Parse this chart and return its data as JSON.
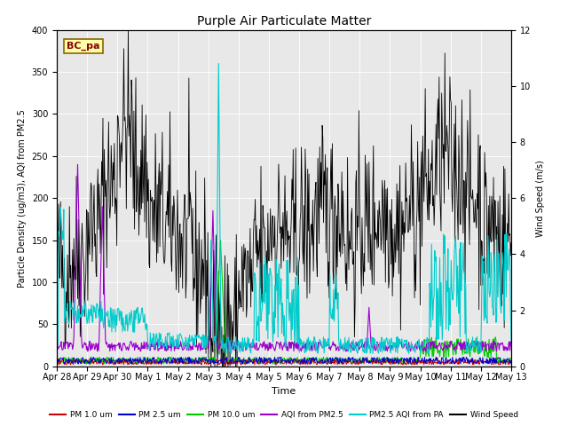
{
  "title": "Purple Air Particulate Matter",
  "xlabel": "Time",
  "ylabel_left": "Particle Density (ug/m3), AQI from PM2.5",
  "ylabel_right": "Wind Speed (m/s)",
  "ylim_left": [
    0,
    400
  ],
  "ylim_right": [
    0,
    12
  ],
  "yticks_left": [
    0,
    50,
    100,
    150,
    200,
    250,
    300,
    350,
    400
  ],
  "yticks_right": [
    0,
    2,
    4,
    6,
    8,
    10,
    12
  ],
  "xtick_labels": [
    "Apr 28",
    "Apr 29",
    "Apr 30",
    "May 1",
    "May 2",
    "May 3",
    "May 4",
    "May 5",
    "May 6",
    "May 7",
    "May 8",
    "May 9",
    "May 10",
    "May 11",
    "May 12",
    "May 13"
  ],
  "legend_labels": [
    "PM 1.0 um",
    "PM 2.5 um",
    "PM 10.0 um",
    "AQI from PM2.5",
    "PM2.5 AQI from PA",
    "Wind Speed"
  ],
  "legend_colors": [
    "#cc0000",
    "#0000cc",
    "#00cc00",
    "#9900cc",
    "#00cccc",
    "#000000"
  ],
  "box_label": "BC_pa",
  "box_facecolor": "#ffffaa",
  "box_edgecolor": "#886600",
  "background_color": "#e8e8e8",
  "n_points": 720,
  "seed": 42
}
